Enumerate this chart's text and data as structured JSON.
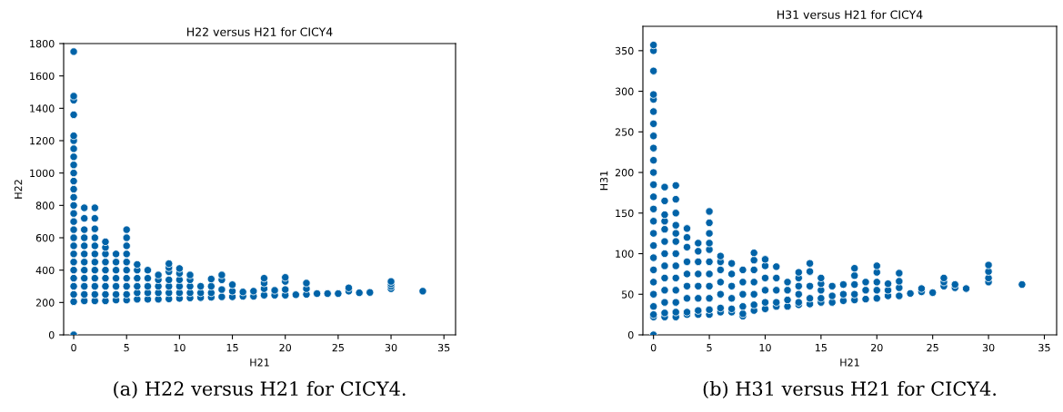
{
  "chart_data": [
    {
      "type": "scatter",
      "title": "H22 versus H21 for CICY4",
      "xlabel": "H21",
      "ylabel": "H22",
      "color": "#0063a8",
      "marker": "circle",
      "grid": false,
      "annotations": [
        "(a) H22 versus H21 for CICY4."
      ],
      "xlim": [
        -0.95,
        36.1
      ],
      "ylim": [
        0,
        1800
      ],
      "xticks": [
        0,
        5,
        10,
        15,
        20,
        25,
        30,
        35
      ],
      "yticks": [
        0,
        200,
        400,
        600,
        800,
        1000,
        1200,
        1400,
        1600,
        1800
      ],
      "x": [
        0,
        0,
        0,
        0,
        0,
        0,
        0,
        0,
        0,
        0,
        0,
        0,
        0,
        0,
        0,
        0,
        0,
        0,
        0,
        0,
        0,
        0,
        0,
        0,
        0,
        0,
        0,
        1,
        1,
        1,
        1,
        1,
        1,
        1,
        1,
        1,
        1,
        1,
        1,
        2,
        2,
        2,
        2,
        2,
        2,
        2,
        2,
        2,
        2,
        2,
        2,
        3,
        3,
        3,
        3,
        3,
        3,
        3,
        3,
        3,
        4,
        4,
        4,
        4,
        4,
        4,
        4,
        5,
        5,
        5,
        5,
        5,
        5,
        5,
        5,
        5,
        5,
        6,
        6,
        6,
        6,
        6,
        6,
        7,
        7,
        7,
        7,
        7,
        8,
        8,
        8,
        8,
        8,
        9,
        9,
        9,
        9,
        9,
        9,
        9,
        10,
        10,
        10,
        10,
        10,
        10,
        11,
        11,
        11,
        11,
        11,
        12,
        12,
        12,
        13,
        13,
        13,
        13,
        14,
        14,
        14,
        14,
        15,
        15,
        15,
        16,
        16,
        17,
        17,
        18,
        18,
        18,
        18,
        19,
        19,
        20,
        20,
        20,
        20,
        21,
        22,
        22,
        22,
        23,
        24,
        25,
        26,
        26,
        27,
        28,
        30,
        30,
        30,
        30,
        33
      ],
      "values": [
        0,
        205,
        250,
        300,
        350,
        400,
        450,
        500,
        550,
        600,
        650,
        700,
        750,
        800,
        850,
        900,
        950,
        1000,
        1050,
        1100,
        1150,
        1200,
        1230,
        1360,
        1450,
        1475,
        1750,
        210,
        250,
        300,
        350,
        400,
        450,
        500,
        550,
        600,
        650,
        720,
        785,
        210,
        250,
        300,
        350,
        400,
        450,
        500,
        550,
        600,
        655,
        720,
        785,
        210,
        250,
        300,
        350,
        400,
        450,
        500,
        540,
        575,
        215,
        250,
        300,
        350,
        400,
        450,
        500,
        215,
        250,
        300,
        350,
        400,
        450,
        500,
        550,
        600,
        650,
        220,
        260,
        300,
        350,
        400,
        435,
        220,
        260,
        300,
        350,
        400,
        220,
        260,
        300,
        340,
        370,
        222,
        260,
        300,
        340,
        390,
        415,
        440,
        225,
        260,
        300,
        340,
        380,
        410,
        228,
        260,
        300,
        340,
        370,
        230,
        260,
        300,
        232,
        260,
        300,
        345,
        235,
        280,
        340,
        370,
        235,
        270,
        310,
        238,
        265,
        238,
        270,
        245,
        285,
        320,
        350,
        245,
        275,
        245,
        280,
        330,
        355,
        248,
        250,
        285,
        320,
        255,
        255,
        255,
        270,
        290,
        260,
        262,
        285,
        300,
        315,
        330,
        270
      ]
    },
    {
      "type": "scatter",
      "title": "H31 versus H21 for CICY4",
      "xlabel": "H21",
      "ylabel": "H31",
      "color": "#0063a8",
      "marker": "circle",
      "grid": false,
      "annotations": [
        "(b) H31 versus H21 for CICY4."
      ],
      "xlim": [
        -0.95,
        36.1
      ],
      "ylim": [
        0,
        380
      ],
      "xticks": [
        0,
        5,
        10,
        15,
        20,
        25,
        30,
        35
      ],
      "yticks": [
        0,
        50,
        100,
        150,
        200,
        250,
        300,
        350
      ],
      "x": [
        0,
        0,
        0,
        0,
        0,
        0,
        0,
        0,
        0,
        0,
        0,
        0,
        0,
        0,
        0,
        0,
        0,
        0,
        0,
        0,
        0,
        0,
        0,
        0,
        0,
        1,
        1,
        1,
        1,
        1,
        1,
        1,
        1,
        1,
        1,
        1,
        1,
        1,
        2,
        2,
        2,
        2,
        2,
        2,
        2,
        2,
        2,
        2,
        2,
        2,
        2,
        3,
        3,
        3,
        3,
        3,
        3,
        3,
        3,
        3,
        4,
        4,
        4,
        4,
        4,
        4,
        4,
        4,
        5,
        5,
        5,
        5,
        5,
        5,
        5,
        5,
        5,
        5,
        5,
        6,
        6,
        6,
        6,
        6,
        6,
        6,
        7,
        7,
        7,
        7,
        7,
        7,
        8,
        8,
        8,
        8,
        8,
        8,
        9,
        9,
        9,
        9,
        9,
        9,
        9,
        10,
        10,
        10,
        10,
        10,
        10,
        11,
        11,
        11,
        11,
        11,
        12,
        12,
        12,
        12,
        13,
        13,
        13,
        13,
        13,
        13,
        14,
        14,
        14,
        14,
        14,
        15,
        15,
        15,
        15,
        15,
        16,
        16,
        16,
        17,
        17,
        17,
        18,
        18,
        18,
        18,
        18,
        19,
        19,
        19,
        20,
        20,
        20,
        20,
        20,
        21,
        21,
        21,
        22,
        22,
        22,
        22,
        23,
        24,
        24,
        25,
        26,
        26,
        26,
        27,
        27,
        28,
        30,
        30,
        30,
        30,
        33
      ],
      "values": [
        0,
        22,
        25,
        35,
        50,
        65,
        80,
        95,
        110,
        125,
        140,
        155,
        170,
        185,
        200,
        215,
        230,
        245,
        260,
        275,
        290,
        296,
        325,
        350,
        357,
        22,
        27,
        40,
        55,
        70,
        85,
        100,
        115,
        130,
        140,
        148,
        165,
        182,
        22,
        28,
        40,
        55,
        70,
        85,
        100,
        115,
        125,
        135,
        150,
        167,
        184,
        25,
        28,
        45,
        60,
        75,
        90,
        108,
        120,
        131,
        25,
        30,
        45,
        60,
        75,
        90,
        103,
        113,
        25,
        31,
        45,
        60,
        75,
        90,
        105,
        113,
        125,
        138,
        152,
        28,
        33,
        50,
        65,
        80,
        90,
        97,
        28,
        32,
        45,
        60,
        75,
        88,
        23,
        26,
        35,
        50,
        65,
        80,
        30,
        37,
        50,
        65,
        80,
        92,
        101,
        32,
        40,
        55,
        70,
        85,
        93,
        35,
        40,
        55,
        70,
        84,
        35,
        43,
        55,
        65,
        37,
        40,
        50,
        60,
        70,
        77,
        38,
        45,
        60,
        78,
        88,
        40,
        45,
        55,
        63,
        70,
        40,
        48,
        60,
        42,
        50,
        62,
        43,
        50,
        62,
        73,
        82,
        44,
        55,
        65,
        45,
        55,
        65,
        77,
        85,
        48,
        55,
        63,
        48,
        58,
        66,
        76,
        51,
        53,
        57,
        52,
        60,
        65,
        70,
        58,
        62,
        57,
        65,
        70,
        78,
        86,
        62
      ]
    }
  ]
}
